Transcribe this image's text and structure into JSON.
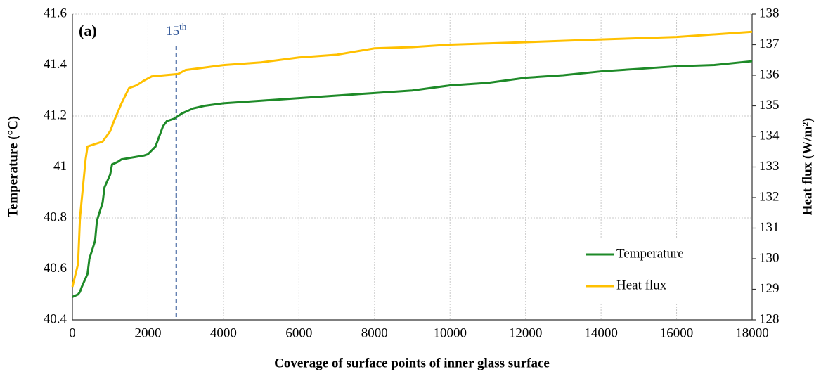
{
  "chart_data": {
    "type": "line",
    "panel_label": "(a)",
    "xlabel": "Coverage of surface points of inner glass surface",
    "ylabel": "Temperature (°C)",
    "y2label": "Heat flux (W/m²)",
    "xlim": [
      0,
      18000
    ],
    "xticks": [
      0,
      2000,
      4000,
      6000,
      8000,
      10000,
      12000,
      14000,
      16000,
      18000
    ],
    "ylim": [
      40.4,
      41.6
    ],
    "yticks": [
      40.4,
      40.6,
      40.8,
      41,
      41.2,
      41.4,
      41.6
    ],
    "y2lim": [
      128,
      138
    ],
    "y2ticks": [
      128,
      129,
      130,
      131,
      132,
      133,
      134,
      135,
      136,
      137,
      138
    ],
    "grid": true,
    "legend": "lower right",
    "annotation": {
      "text": "15",
      "sup": "th",
      "x": 2750,
      "color": "#2f5597"
    },
    "series": [
      {
        "name": "Temperature",
        "color": "#1e8a28",
        "axis": "y",
        "x": [
          0,
          150,
          200,
          250,
          400,
          450,
          600,
          650,
          800,
          850,
          1000,
          1050,
          1200,
          1300,
          1500,
          1700,
          1900,
          2000,
          2200,
          2300,
          2400,
          2500,
          2700,
          2900,
          3200,
          3500,
          4000,
          5000,
          6000,
          7000,
          8000,
          9000,
          10000,
          11000,
          12000,
          13000,
          14000,
          15000,
          16000,
          17000,
          18000
        ],
        "values": [
          40.49,
          40.5,
          40.51,
          40.53,
          40.58,
          40.64,
          40.71,
          40.79,
          40.86,
          40.92,
          40.97,
          41.01,
          41.02,
          41.03,
          41.035,
          41.04,
          41.045,
          41.05,
          41.08,
          41.12,
          41.16,
          41.18,
          41.19,
          41.21,
          41.23,
          41.24,
          41.25,
          41.26,
          41.27,
          41.28,
          41.29,
          41.3,
          41.32,
          41.33,
          41.35,
          41.36,
          41.375,
          41.385,
          41.395,
          41.4,
          41.415
        ]
      },
      {
        "name": "Heat flux",
        "color": "#ffc000",
        "axis": "y2",
        "x": [
          0,
          150,
          200,
          350,
          400,
          800,
          900,
          1000,
          1100,
          1300,
          1500,
          1700,
          1900,
          2100,
          2800,
          3000,
          3500,
          4000,
          5000,
          6000,
          7000,
          8000,
          9000,
          10000,
          11000,
          12000,
          14000,
          16000,
          18000
        ],
        "values": [
          129.08,
          129.83,
          131.33,
          133.25,
          133.67,
          133.83,
          134.0,
          134.17,
          134.5,
          135.08,
          135.58,
          135.67,
          135.83,
          135.96,
          136.04,
          136.17,
          136.25,
          136.33,
          136.42,
          136.58,
          136.67,
          136.88,
          136.92,
          137.0,
          137.04,
          137.08,
          137.17,
          137.25,
          137.42
        ]
      }
    ]
  }
}
